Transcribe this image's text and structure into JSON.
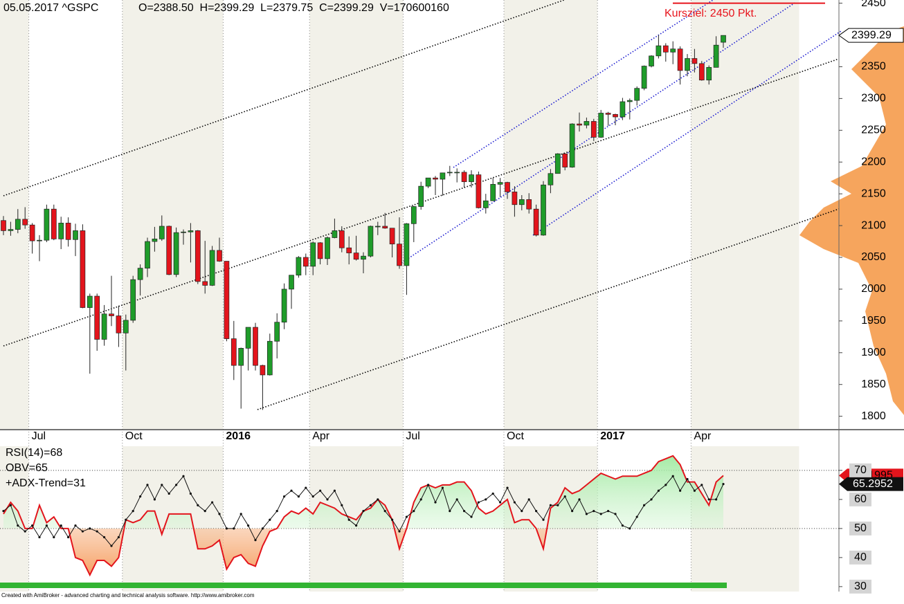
{
  "chart_data": [
    {
      "type": "candlestick",
      "title": "05.05.2017 ^GSPC",
      "ohlc_label": "O=2388.50  H=2399.29  L=2379.75  C=2399.29  V=170600160",
      "target": 2450,
      "target_label": "Kursziel: 2450 Pkt.",
      "target_color": "#e8141c",
      "last_price": 2399.29,
      "up_color": "#1f9c2a",
      "down_color": "#e3141c",
      "categories": [
        null,
        null,
        null,
        null,
        "Jul",
        null,
        null,
        null,
        null,
        null,
        null,
        null,
        null,
        null,
        null,
        null,
        null,
        "Oct",
        null,
        null,
        null,
        null,
        null,
        null,
        null,
        null,
        null,
        null,
        null,
        null,
        null,
        "2016",
        null,
        null,
        null,
        null,
        null,
        null,
        null,
        null,
        null,
        null,
        null,
        "Apr",
        null,
        null,
        null,
        null,
        null,
        null,
        null,
        null,
        null,
        null,
        null,
        null,
        "Jul",
        null,
        null,
        null,
        null,
        null,
        null,
        null,
        null,
        null,
        null,
        null,
        null,
        null,
        "Oct",
        null,
        null,
        null,
        null,
        null,
        null,
        null,
        null,
        null,
        null,
        null,
        null,
        "2017",
        null,
        null,
        null,
        null,
        null,
        null,
        null,
        null,
        null,
        null,
        null,
        null,
        "Apr",
        null,
        null,
        null,
        null
      ],
      "open": [
        2108,
        2092,
        2094,
        2110,
        2101,
        2076,
        2077,
        2126,
        2079,
        2104,
        2078,
        2092,
        1971,
        1989,
        1921,
        1961,
        1958,
        1931,
        1951,
        2015,
        2033,
        2075,
        2079,
        2099,
        2023,
        2089,
        2090,
        2092,
        2012,
        2006,
        2061,
        2044,
        1922,
        1880,
        1907,
        1940,
        1880,
        1865,
        1918,
        1948,
        2000,
        2022,
        2050,
        2036,
        2073,
        2048,
        2081,
        2092,
        2065,
        2057,
        2047,
        2052,
        2099,
        2099,
        2096,
        2071,
        2037,
        2103,
        2130,
        2162,
        2175,
        2173,
        2183,
        2184,
        2184,
        2169,
        2180,
        2128,
        2139,
        2165,
        2168,
        2153,
        2133,
        2141,
        2126,
        2085,
        2164,
        2182,
        2213,
        2192,
        2260,
        2258,
        2264,
        2239,
        2277,
        2275,
        2271,
        2295,
        2297,
        2316,
        2351,
        2367,
        2383,
        2373,
        2378,
        2344,
        2363,
        2355,
        2329,
        2349,
        2388.5
      ],
      "high": [
        2115,
        2106,
        2126,
        2129,
        2104,
        2085,
        2133,
        2133,
        2114,
        2113,
        2103,
        2102,
        1993,
        1993,
        1975,
        2021,
        1974,
        1960,
        2021,
        2039,
        2081,
        2098,
        2116,
        2100,
        2097,
        2094,
        2104,
        2093,
        2076,
        2068,
        2081,
        2044,
        1950,
        1908,
        1940,
        1947,
        1881,
        1930,
        1962,
        2009,
        2022,
        2052,
        2056,
        2075,
        2074,
        2083,
        2111,
        2099,
        2083,
        2084,
        2058,
        2100,
        2106,
        2120,
        2096,
        2113,
        2104,
        2131,
        2169,
        2175,
        2178,
        2183,
        2194,
        2190,
        2187,
        2187,
        2185,
        2150,
        2175,
        2175,
        2169,
        2162,
        2148,
        2151,
        2133,
        2170,
        2189,
        2214,
        2214,
        2261,
        2278,
        2270,
        2268,
        2282,
        2279,
        2276,
        2301,
        2300,
        2319,
        2352,
        2368,
        2400,
        2387,
        2390,
        2382,
        2370,
        2378,
        2359,
        2352,
        2398,
        2399.29
      ],
      "low": [
        2085,
        2084,
        2088,
        2095,
        2056,
        2044,
        2074,
        2077,
        2063,
        2067,
        2052,
        1970,
        1867,
        1903,
        1911,
        1942,
        1909,
        1872,
        1947,
        1990,
        2019,
        2059,
        2076,
        2022,
        2019,
        2070,
        2042,
        2008,
        1993,
        2005,
        2043,
        1918,
        1857,
        1812,
        1872,
        1872,
        1810,
        1864,
        1891,
        1937,
        1969,
        2018,
        2022,
        2022,
        2039,
        2038,
        2080,
        2058,
        2039,
        2045,
        2025,
        2050,
        2085,
        2095,
        2050,
        2032,
        1991,
        2074,
        2125,
        2159,
        2148,
        2147,
        2178,
        2168,
        2160,
        2160,
        2127,
        2119,
        2139,
        2145,
        2142,
        2114,
        2124,
        2119,
        2083,
        2084,
        2151,
        2182,
        2187,
        2191,
        2248,
        2253,
        2233,
        2238,
        2257,
        2258,
        2266,
        2267,
        2289,
        2313,
        2349,
        2363,
        2358,
        2354,
        2322,
        2335,
        2341,
        2328,
        2322,
        2349,
        2379.75
      ],
      "close": [
        2092,
        2094,
        2110,
        2101,
        2076,
        2077,
        2126,
        2079,
        2104,
        2078,
        2092,
        1971,
        1989,
        1921,
        1961,
        1958,
        1931,
        1951,
        2015,
        2033,
        2075,
        2079,
        2099,
        2023,
        2089,
        2090,
        2092,
        2012,
        2006,
        2061,
        2044,
        1922,
        1880,
        1907,
        1940,
        1880,
        1865,
        1918,
        1948,
        2000,
        2022,
        2050,
        2036,
        2073,
        2048,
        2081,
        2092,
        2065,
        2057,
        2047,
        2052,
        2099,
        2099,
        2096,
        2071,
        2037,
        2103,
        2130,
        2162,
        2175,
        2173,
        2183,
        2184,
        2184,
        2169,
        2180,
        2128,
        2139,
        2165,
        2168,
        2153,
        2133,
        2141,
        2126,
        2085,
        2164,
        2182,
        2213,
        2192,
        2260,
        2258,
        2264,
        2239,
        2277,
        2275,
        2271,
        2295,
        2297,
        2316,
        2351,
        2367,
        2383,
        2373,
        2378,
        2344,
        2363,
        2355,
        2329,
        2349,
        2384,
        2399.29
      ],
      "ylim": [
        1780,
        2455
      ],
      "yticks": [
        1800,
        1850,
        1900,
        1950,
        2000,
        2050,
        2100,
        2150,
        2200,
        2250,
        2300,
        2350,
        2400,
        2450
      ]
    },
    {
      "type": "line",
      "series": [
        {
          "name": "RSI(14)=68",
          "color": "#e3141c",
          "values": [
            55,
            59,
            56,
            50,
            50,
            58,
            52,
            54,
            50,
            50,
            40,
            39,
            34,
            39,
            39,
            37,
            40,
            53,
            52,
            53,
            56,
            56,
            48,
            55,
            55,
            55,
            55,
            43,
            43,
            44,
            46,
            36,
            40,
            41,
            38,
            37,
            44,
            49,
            50,
            54,
            56,
            55,
            57,
            55,
            59,
            58,
            57,
            55,
            54,
            53,
            56,
            57,
            60,
            58,
            53,
            43,
            50,
            59,
            64,
            65,
            64,
            65,
            65,
            66,
            66,
            63,
            57,
            55,
            56,
            58,
            60,
            52,
            53,
            53,
            50,
            43,
            57,
            59,
            64,
            62,
            63,
            65,
            67,
            69,
            68,
            67,
            68,
            68,
            68,
            69,
            70,
            73,
            74,
            75,
            72,
            66,
            66,
            62,
            58,
            66,
            68.1995
          ]
        },
        {
          "name": "OBV=65",
          "color": "#111111",
          "values": [
            56,
            58,
            51,
            49,
            51,
            47,
            51,
            47,
            51,
            47,
            51,
            49,
            50,
            49,
            47,
            44,
            47,
            53,
            56,
            61,
            65,
            60,
            65,
            62,
            65,
            68,
            62,
            58,
            56,
            59,
            55,
            50,
            50,
            55,
            51,
            46,
            50,
            53,
            56,
            61,
            63,
            61,
            64,
            61,
            63,
            60,
            63,
            58,
            53,
            51,
            56,
            58,
            60,
            56,
            53,
            49,
            54,
            56,
            60,
            65,
            59,
            64,
            56,
            60,
            56,
            54,
            59,
            60,
            62,
            59,
            64,
            59,
            56,
            60,
            56,
            53,
            58,
            58,
            61,
            56,
            60,
            55,
            56,
            55,
            56,
            55,
            51,
            50,
            54,
            58,
            60,
            63,
            65,
            68,
            63,
            67,
            63,
            65,
            60,
            60,
            65.2952
          ]
        }
      ],
      "note": "+ADX-Trend=31",
      "hlines": [
        50,
        70
      ],
      "ylim": [
        28.3,
        78.3
      ],
      "yticks": [
        30,
        40,
        50,
        60,
        70
      ]
    }
  ],
  "footer": "Created with AmiBroker - advanced charting and technical analysis software. http://www.amibroker.com"
}
